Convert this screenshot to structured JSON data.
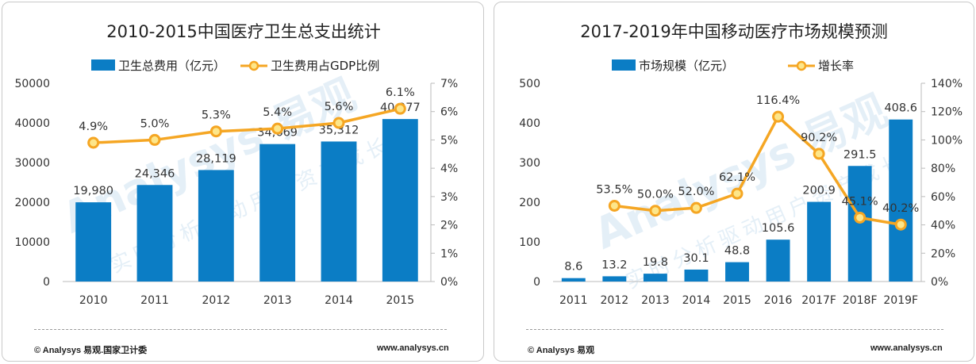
{
  "charts": [
    {
      "title": "2010-2015中国医疗卫生总支出统计",
      "legend": {
        "bar": "卫生总费用（亿元）",
        "line": "卫生费用占GDP比例"
      },
      "source": "© Analysys 易观.国家卫计委",
      "url": "www.analysys.cn",
      "watermark": {
        "logo": "Analysys 易观",
        "slogan": "实时分析驱动用户资产成长"
      }
    },
    {
      "title": "2017-2019年中国移动医疗市场规模预测",
      "legend": {
        "bar": "市场规模（亿元）",
        "line": "增长率"
      },
      "source": "© Analysys 易观",
      "url": "www.analysys.cn",
      "watermark": {
        "logo": "Analysys 易观",
        "slogan": "实时分析驱动用户资产成长"
      }
    }
  ],
  "chart_data": [
    {
      "type": "bar",
      "title": "2010-2015中国医疗卫生总支出统计",
      "categories": [
        "2010",
        "2011",
        "2012",
        "2013",
        "2014",
        "2015"
      ],
      "series": [
        {
          "name": "卫生总费用（亿元）",
          "type": "bar",
          "axis": "left",
          "values": [
            19980,
            24346,
            28119,
            34669,
            35312,
            40977
          ],
          "labels": [
            "19,980",
            "24,346",
            "28,119",
            "34,669",
            "35,312",
            "40,977"
          ]
        },
        {
          "name": "卫生费用占GDP比例",
          "type": "line",
          "axis": "right",
          "values": [
            4.9,
            5.0,
            5.3,
            5.4,
            5.6,
            6.1
          ],
          "labels": [
            "4.9%",
            "5.0%",
            "5.3%",
            "5.4%",
            "5.6%",
            "6.1%"
          ]
        }
      ],
      "y_left": {
        "min": 0,
        "max": 50000,
        "ticks": [
          "0",
          "10000",
          "20000",
          "30000",
          "40000",
          "50000"
        ]
      },
      "y_right": {
        "min": 0,
        "max": 7,
        "ticks": [
          "0%",
          "1%",
          "2%",
          "3%",
          "4%",
          "5%",
          "6%",
          "7%"
        ]
      },
      "legend_position": "top",
      "grid": false,
      "colors": {
        "bar": "#0b7dc5",
        "line": "#f5a623",
        "marker_fill": "#fde68a"
      }
    },
    {
      "type": "bar",
      "title": "2017-2019年中国移动医疗市场规模预测",
      "categories": [
        "2011",
        "2012",
        "2013",
        "2014",
        "2015",
        "2016",
        "2017F",
        "2018F",
        "2019F"
      ],
      "series": [
        {
          "name": "市场规模（亿元）",
          "type": "bar",
          "axis": "left",
          "values": [
            8.6,
            13.2,
            19.8,
            30.1,
            48.8,
            105.6,
            200.9,
            291.5,
            408.6
          ],
          "labels": [
            "8.6",
            "13.2",
            "19.8",
            "30.1",
            "48.8",
            "105.6",
            "200.9",
            "291.5",
            "408.6"
          ]
        },
        {
          "name": "增长率",
          "type": "line",
          "axis": "right",
          "values": [
            null,
            53.5,
            50.0,
            52.0,
            62.1,
            116.4,
            90.2,
            45.1,
            40.2
          ],
          "labels": [
            "",
            "53.5%",
            "50.0%",
            "52.0%",
            "62.1%",
            "116.4%",
            "90.2%",
            "45.1%",
            "40.2%"
          ]
        }
      ],
      "y_left": {
        "min": 0,
        "max": 500,
        "ticks": [
          "0",
          "100",
          "200",
          "300",
          "400",
          "500"
        ]
      },
      "y_right": {
        "min": 0,
        "max": 140,
        "ticks": [
          "0%",
          "20%",
          "40%",
          "60%",
          "80%",
          "100%",
          "120%",
          "140%"
        ]
      },
      "legend_position": "top",
      "grid": false,
      "colors": {
        "bar": "#0b7dc5",
        "line": "#f5a623",
        "marker_fill": "#fde68a"
      }
    }
  ]
}
